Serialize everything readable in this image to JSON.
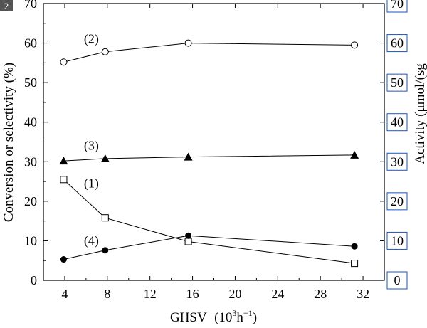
{
  "chart_data": {
    "type": "line",
    "x_label_prefix": "GHSV",
    "x_label_unit_base": "(10",
    "x_label_unit_exp": "3",
    "x_label_unit_mid": "h",
    "x_label_unit_exp2": "−1",
    "x_label_unit_end": ")",
    "ylabel": "Conversion or selectivity (%)",
    "y2label": "Activity (μmol/(sg",
    "xlim": [
      2,
      34
    ],
    "ylim": [
      0,
      70
    ],
    "y2lim": [
      0,
      70
    ],
    "x_ticks": [
      4,
      8,
      12,
      16,
      20,
      24,
      28,
      32
    ],
    "y_ticks": [
      0,
      10,
      20,
      30,
      40,
      50,
      60,
      70
    ],
    "y2_ticks": [
      0,
      10,
      20,
      30,
      40,
      50,
      60,
      70
    ],
    "panel_tag": "2",
    "series": [
      {
        "name": "(1)",
        "marker": "open-square",
        "x": [
          3.9,
          7.8,
          15.6,
          31.2
        ],
        "y": [
          25.5,
          15.8,
          9.8,
          4.3
        ]
      },
      {
        "name": "(2)",
        "marker": "open-circle",
        "x": [
          3.9,
          7.8,
          15.6,
          31.2
        ],
        "y": [
          55.2,
          57.8,
          60.0,
          59.5
        ]
      },
      {
        "name": "(3)",
        "marker": "filled-triangle",
        "x": [
          3.9,
          7.8,
          15.6,
          31.2
        ],
        "y": [
          30.2,
          30.8,
          31.2,
          31.7
        ]
      },
      {
        "name": "(4)",
        "marker": "filled-circle",
        "x": [
          3.9,
          7.8,
          15.6,
          31.2
        ],
        "y": [
          5.3,
          7.6,
          11.3,
          8.6
        ]
      }
    ]
  }
}
